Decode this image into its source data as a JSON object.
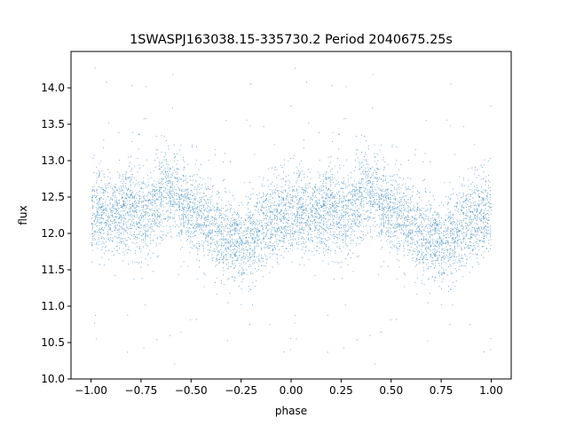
{
  "chart_data": {
    "type": "scatter",
    "title": "1SWASPJ163038.15-335730.2 Period 2040675.25s",
    "xlabel": "phase",
    "ylabel": "flux",
    "xlim": [
      -1.1,
      1.1
    ],
    "ylim": [
      10.0,
      14.5
    ],
    "xticks": [
      -1.0,
      -0.75,
      -0.5,
      -0.25,
      0.0,
      0.25,
      0.5,
      0.75,
      1.0
    ],
    "xtick_labels": [
      "−1.00",
      "−0.75",
      "−0.50",
      "−0.25",
      "0.00",
      "0.25",
      "0.50",
      "0.75",
      "1.00"
    ],
    "yticks": [
      10.0,
      10.5,
      11.0,
      11.5,
      12.0,
      12.5,
      13.0,
      13.5,
      14.0
    ],
    "ytick_labels": [
      "10.0",
      "10.5",
      "11.0",
      "11.5",
      "12.0",
      "12.5",
      "13.0",
      "13.5",
      "14.0"
    ],
    "grid": false,
    "marker_color": "#1f77b4",
    "point_count_approx": 18000,
    "series_profile": {
      "phase": [
        0.0,
        0.05,
        0.1,
        0.15,
        0.2,
        0.25,
        0.3,
        0.35,
        0.4,
        0.45,
        0.5,
        0.55,
        0.6,
        0.65,
        0.7,
        0.75,
        0.8,
        0.85,
        0.9,
        0.95,
        1.0
      ],
      "median_flux": [
        12.25,
        12.3,
        12.25,
        12.3,
        12.35,
        12.2,
        12.3,
        12.5,
        12.6,
        12.45,
        12.3,
        12.2,
        12.1,
        12.0,
        11.9,
        11.85,
        11.9,
        12.05,
        12.2,
        12.3,
        12.25
      ],
      "spread": 0.28
    }
  }
}
